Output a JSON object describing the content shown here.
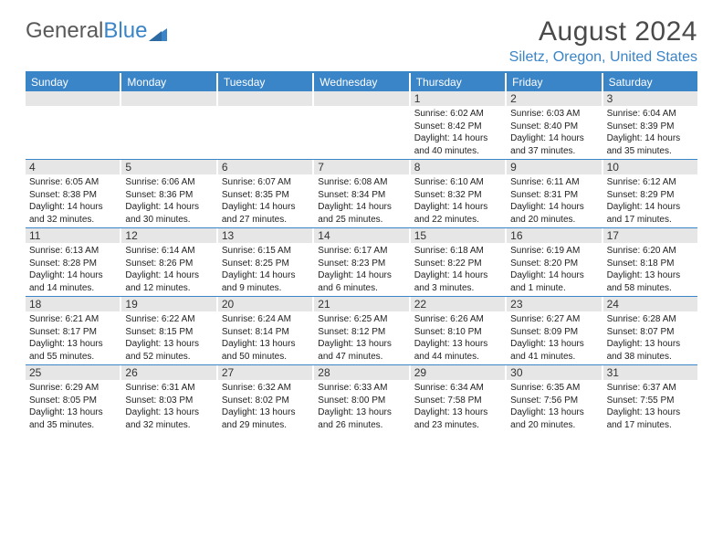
{
  "logo": {
    "word1": "General",
    "word2": "Blue"
  },
  "title": "August 2024",
  "subtitle": "Siletz, Oregon, United States",
  "colors": {
    "brand": "#3a84c8",
    "text": "#4a4a4a",
    "daybg": "#e6e6e6",
    "body": "#ffffff"
  },
  "day_headers": [
    "Sunday",
    "Monday",
    "Tuesday",
    "Wednesday",
    "Thursday",
    "Friday",
    "Saturday"
  ],
  "weeks": [
    [
      null,
      null,
      null,
      null,
      {
        "num": "1",
        "sunrise": "Sunrise: 6:02 AM",
        "sunset": "Sunset: 8:42 PM",
        "daylight1": "Daylight: 14 hours",
        "daylight2": "and 40 minutes."
      },
      {
        "num": "2",
        "sunrise": "Sunrise: 6:03 AM",
        "sunset": "Sunset: 8:40 PM",
        "daylight1": "Daylight: 14 hours",
        "daylight2": "and 37 minutes."
      },
      {
        "num": "3",
        "sunrise": "Sunrise: 6:04 AM",
        "sunset": "Sunset: 8:39 PM",
        "daylight1": "Daylight: 14 hours",
        "daylight2": "and 35 minutes."
      }
    ],
    [
      {
        "num": "4",
        "sunrise": "Sunrise: 6:05 AM",
        "sunset": "Sunset: 8:38 PM",
        "daylight1": "Daylight: 14 hours",
        "daylight2": "and 32 minutes."
      },
      {
        "num": "5",
        "sunrise": "Sunrise: 6:06 AM",
        "sunset": "Sunset: 8:36 PM",
        "daylight1": "Daylight: 14 hours",
        "daylight2": "and 30 minutes."
      },
      {
        "num": "6",
        "sunrise": "Sunrise: 6:07 AM",
        "sunset": "Sunset: 8:35 PM",
        "daylight1": "Daylight: 14 hours",
        "daylight2": "and 27 minutes."
      },
      {
        "num": "7",
        "sunrise": "Sunrise: 6:08 AM",
        "sunset": "Sunset: 8:34 PM",
        "daylight1": "Daylight: 14 hours",
        "daylight2": "and 25 minutes."
      },
      {
        "num": "8",
        "sunrise": "Sunrise: 6:10 AM",
        "sunset": "Sunset: 8:32 PM",
        "daylight1": "Daylight: 14 hours",
        "daylight2": "and 22 minutes."
      },
      {
        "num": "9",
        "sunrise": "Sunrise: 6:11 AM",
        "sunset": "Sunset: 8:31 PM",
        "daylight1": "Daylight: 14 hours",
        "daylight2": "and 20 minutes."
      },
      {
        "num": "10",
        "sunrise": "Sunrise: 6:12 AM",
        "sunset": "Sunset: 8:29 PM",
        "daylight1": "Daylight: 14 hours",
        "daylight2": "and 17 minutes."
      }
    ],
    [
      {
        "num": "11",
        "sunrise": "Sunrise: 6:13 AM",
        "sunset": "Sunset: 8:28 PM",
        "daylight1": "Daylight: 14 hours",
        "daylight2": "and 14 minutes."
      },
      {
        "num": "12",
        "sunrise": "Sunrise: 6:14 AM",
        "sunset": "Sunset: 8:26 PM",
        "daylight1": "Daylight: 14 hours",
        "daylight2": "and 12 minutes."
      },
      {
        "num": "13",
        "sunrise": "Sunrise: 6:15 AM",
        "sunset": "Sunset: 8:25 PM",
        "daylight1": "Daylight: 14 hours",
        "daylight2": "and 9 minutes."
      },
      {
        "num": "14",
        "sunrise": "Sunrise: 6:17 AM",
        "sunset": "Sunset: 8:23 PM",
        "daylight1": "Daylight: 14 hours",
        "daylight2": "and 6 minutes."
      },
      {
        "num": "15",
        "sunrise": "Sunrise: 6:18 AM",
        "sunset": "Sunset: 8:22 PM",
        "daylight1": "Daylight: 14 hours",
        "daylight2": "and 3 minutes."
      },
      {
        "num": "16",
        "sunrise": "Sunrise: 6:19 AM",
        "sunset": "Sunset: 8:20 PM",
        "daylight1": "Daylight: 14 hours",
        "daylight2": "and 1 minute."
      },
      {
        "num": "17",
        "sunrise": "Sunrise: 6:20 AM",
        "sunset": "Sunset: 8:18 PM",
        "daylight1": "Daylight: 13 hours",
        "daylight2": "and 58 minutes."
      }
    ],
    [
      {
        "num": "18",
        "sunrise": "Sunrise: 6:21 AM",
        "sunset": "Sunset: 8:17 PM",
        "daylight1": "Daylight: 13 hours",
        "daylight2": "and 55 minutes."
      },
      {
        "num": "19",
        "sunrise": "Sunrise: 6:22 AM",
        "sunset": "Sunset: 8:15 PM",
        "daylight1": "Daylight: 13 hours",
        "daylight2": "and 52 minutes."
      },
      {
        "num": "20",
        "sunrise": "Sunrise: 6:24 AM",
        "sunset": "Sunset: 8:14 PM",
        "daylight1": "Daylight: 13 hours",
        "daylight2": "and 50 minutes."
      },
      {
        "num": "21",
        "sunrise": "Sunrise: 6:25 AM",
        "sunset": "Sunset: 8:12 PM",
        "daylight1": "Daylight: 13 hours",
        "daylight2": "and 47 minutes."
      },
      {
        "num": "22",
        "sunrise": "Sunrise: 6:26 AM",
        "sunset": "Sunset: 8:10 PM",
        "daylight1": "Daylight: 13 hours",
        "daylight2": "and 44 minutes."
      },
      {
        "num": "23",
        "sunrise": "Sunrise: 6:27 AM",
        "sunset": "Sunset: 8:09 PM",
        "daylight1": "Daylight: 13 hours",
        "daylight2": "and 41 minutes."
      },
      {
        "num": "24",
        "sunrise": "Sunrise: 6:28 AM",
        "sunset": "Sunset: 8:07 PM",
        "daylight1": "Daylight: 13 hours",
        "daylight2": "and 38 minutes."
      }
    ],
    [
      {
        "num": "25",
        "sunrise": "Sunrise: 6:29 AM",
        "sunset": "Sunset: 8:05 PM",
        "daylight1": "Daylight: 13 hours",
        "daylight2": "and 35 minutes."
      },
      {
        "num": "26",
        "sunrise": "Sunrise: 6:31 AM",
        "sunset": "Sunset: 8:03 PM",
        "daylight1": "Daylight: 13 hours",
        "daylight2": "and 32 minutes."
      },
      {
        "num": "27",
        "sunrise": "Sunrise: 6:32 AM",
        "sunset": "Sunset: 8:02 PM",
        "daylight1": "Daylight: 13 hours",
        "daylight2": "and 29 minutes."
      },
      {
        "num": "28",
        "sunrise": "Sunrise: 6:33 AM",
        "sunset": "Sunset: 8:00 PM",
        "daylight1": "Daylight: 13 hours",
        "daylight2": "and 26 minutes."
      },
      {
        "num": "29",
        "sunrise": "Sunrise: 6:34 AM",
        "sunset": "Sunset: 7:58 PM",
        "daylight1": "Daylight: 13 hours",
        "daylight2": "and 23 minutes."
      },
      {
        "num": "30",
        "sunrise": "Sunrise: 6:35 AM",
        "sunset": "Sunset: 7:56 PM",
        "daylight1": "Daylight: 13 hours",
        "daylight2": "and 20 minutes."
      },
      {
        "num": "31",
        "sunrise": "Sunrise: 6:37 AM",
        "sunset": "Sunset: 7:55 PM",
        "daylight1": "Daylight: 13 hours",
        "daylight2": "and 17 minutes."
      }
    ]
  ]
}
